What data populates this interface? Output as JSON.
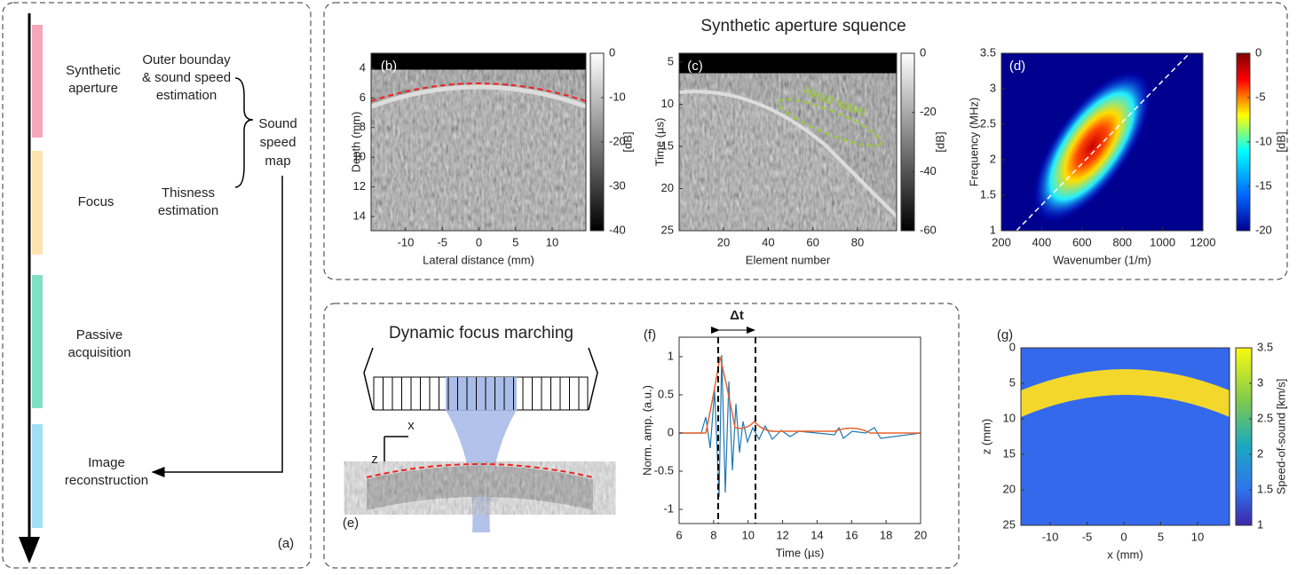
{
  "panel_a": {
    "steps": [
      [
        "Synthetic",
        "aperture"
      ],
      [
        "Focus"
      ],
      [
        "Passive",
        "acquisition"
      ],
      [
        "Image",
        "reconstruction"
      ]
    ],
    "notes": [
      [
        "Outer bounday",
        "& sound speed",
        "estimation"
      ],
      [
        "Thisness",
        "estimation"
      ]
    ],
    "result": [
      "Sound",
      "speed",
      "map"
    ],
    "tag": "(a)"
  },
  "top_title": "Synthetic aperture squence",
  "panel_b": {
    "tag": "(b)",
    "xlabel": "Lateral distance (mm)",
    "ylabel": "Depth (mm)",
    "xticks": [
      -10,
      -5,
      0,
      5,
      10
    ],
    "yticks": [
      4,
      6,
      8,
      10,
      12,
      14
    ],
    "cbar_ticks": [
      0,
      -10,
      -20,
      -30,
      -40
    ],
    "cbar_label": "[dB]"
  },
  "panel_c": {
    "tag": "(c)",
    "xlabel": "Element number",
    "ylabel": "Time (µs)",
    "xticks": [
      20,
      40,
      60,
      80
    ],
    "yticks": [
      5,
      10,
      15,
      20,
      25
    ],
    "cbar_ticks": [
      0,
      -20,
      -40,
      -60
    ],
    "cbar_label": "[dB]",
    "annotation": "Head wave"
  },
  "panel_d": {
    "tag": "(d)",
    "xlabel": "Wavenumber (1/m)",
    "ylabel": "Frequency (MHz)",
    "xticks": [
      200,
      400,
      600,
      800,
      1000,
      1200
    ],
    "yticks": [
      1,
      1.5,
      2,
      2.5,
      3,
      3.5
    ],
    "cbar_ticks": [
      0,
      -5,
      -10,
      -15,
      -20
    ],
    "cbar_label": "[dB]"
  },
  "panel_e": {
    "tag": "(e)",
    "title": "Dynamic focus marching",
    "x_axis": "x",
    "z_axis": "z"
  },
  "panel_f": {
    "tag": "(f)",
    "xlabel": "Time (µs)",
    "ylabel": "Norm. amp. (a.u.)",
    "xticks": [
      6,
      8,
      10,
      12,
      14,
      16,
      18,
      20
    ],
    "yticks": [
      1,
      0.5,
      0,
      -0.5,
      -1
    ],
    "delta": "Δt"
  },
  "panel_g": {
    "tag": "(g)",
    "xlabel": "x (mm)",
    "ylabel": "z (mm)",
    "xticks": [
      -10,
      -5,
      0,
      5,
      10
    ],
    "yticks": [
      0,
      5,
      10,
      15,
      20,
      25
    ],
    "cbar_ticks": [
      1,
      1.5,
      2,
      2.5,
      3,
      3.5
    ],
    "cbar_label": "Speed-of-sound [km/s]"
  }
}
